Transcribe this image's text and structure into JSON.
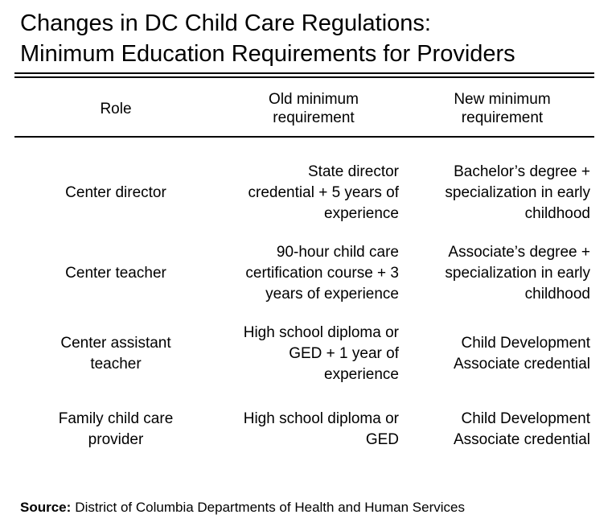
{
  "title": {
    "line1": "Changes in DC Child Care Regulations:",
    "line2": "Minimum Education Requirements for Providers"
  },
  "table": {
    "headers": {
      "role": "Role",
      "old": "Old minimum\nrequirement",
      "new": "New minimum\nrequirement"
    },
    "rows": [
      {
        "role": "Center director",
        "old": "State director\ncredential + 5 years of\nexperience",
        "new": "Bachelor’s degree +\nspecialization in early\nchildhood"
      },
      {
        "role": "Center teacher",
        "old": "90-hour child care\ncertification course + 3\nyears of experience",
        "new": "Associate’s degree +\nspecialization in early\nchildhood"
      },
      {
        "role": "Center assistant\nteacher",
        "old": "High school diploma or\nGED + 1 year of\nexperience",
        "new": "Child Development\nAssociate credential"
      },
      {
        "role": "Family child care\nprovider",
        "old": "High school diploma or\nGED",
        "new": "Child Development\nAssociate credential"
      }
    ]
  },
  "source": {
    "label": "Source:",
    "text": "District of Columbia Departments of Health and Human Services"
  },
  "colors": {
    "text": "#000000",
    "rule": "#000000",
    "background": "#ffffff"
  }
}
